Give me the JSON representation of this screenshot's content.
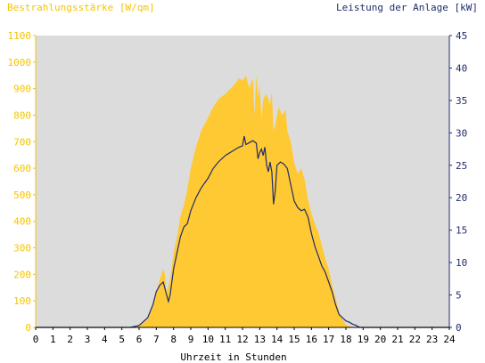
{
  "chart_data": {
    "type": "area",
    "ylabel_left": "Bestrahlungsstärke [W/qm]",
    "ylabel_right": "Leistung der Anlage [kW]",
    "xlabel": "Uhrzeit in Stunden",
    "xlim": [
      0,
      24
    ],
    "ylim_left": [
      0,
      1100
    ],
    "ylim_right": [
      0,
      45
    ],
    "x_ticks": [
      "0",
      "1",
      "2",
      "3",
      "4",
      "5",
      "6",
      "7",
      "8",
      "9",
      "10",
      "11",
      "12",
      "13",
      "14",
      "15",
      "16",
      "17",
      "18",
      "19",
      "20",
      "21",
      "22",
      "23",
      "24"
    ],
    "y_ticks_left": [
      "0",
      "100",
      "200",
      "300",
      "400",
      "500",
      "600",
      "700",
      "800",
      "900",
      "1000",
      "1100"
    ],
    "y_ticks_right": [
      "0",
      "5",
      "10",
      "15",
      "20",
      "25",
      "30",
      "35",
      "40",
      "45"
    ],
    "grid": false,
    "colors": {
      "plot_background": "#dcdcdc",
      "irradiance_fill": "#ffc933",
      "power_line": "#1f2d6b",
      "left_axis": "#f5c400",
      "right_axis": "#1f2d6b"
    },
    "series": [
      {
        "name": "Bestrahlungsstärke",
        "axis": "left",
        "style": "area",
        "x": [
          0,
          5.5,
          6,
          6.5,
          6.8,
          7,
          7.2,
          7.4,
          7.5,
          7.6,
          7.8,
          8,
          8.2,
          8.4,
          8.6,
          8.8,
          9,
          9.3,
          9.6,
          10,
          10.3,
          10.6,
          11,
          11.3,
          11.6,
          11.8,
          12,
          12.2,
          12.4,
          12.6,
          12.7,
          12.8,
          12.9,
          13,
          13.1,
          13.2,
          13.4,
          13.6,
          13.7,
          13.8,
          13.9,
          14,
          14.1,
          14.3,
          14.5,
          14.6,
          14.8,
          15,
          15.2,
          15.4,
          15.6,
          15.8,
          16,
          16.2,
          16.4,
          16.6,
          16.8,
          17,
          17.2,
          17.4,
          17.6,
          17.8,
          18,
          18.2,
          18.4,
          18.6,
          18.8,
          19,
          19.2,
          19.5,
          24
        ],
        "y": [
          0,
          0,
          5,
          30,
          90,
          130,
          180,
          220,
          200,
          130,
          180,
          280,
          340,
          420,
          460,
          520,
          600,
          680,
          740,
          790,
          830,
          860,
          880,
          900,
          920,
          940,
          930,
          950,
          900,
          940,
          800,
          950,
          870,
          910,
          780,
          860,
          880,
          840,
          890,
          740,
          760,
          800,
          830,
          800,
          820,
          740,
          700,
          620,
          580,
          600,
          560,
          480,
          430,
          390,
          360,
          310,
          260,
          220,
          160,
          110,
          60,
          30,
          10,
          5,
          2,
          0,
          0,
          0,
          0,
          0,
          0
        ]
      },
      {
        "name": "Leistung der Anlage",
        "axis": "right",
        "style": "line",
        "x": [
          0,
          5.5,
          6,
          6.5,
          6.8,
          7,
          7.2,
          7.4,
          7.6,
          7.7,
          7.8,
          8,
          8.2,
          8.4,
          8.6,
          8.8,
          9,
          9.3,
          9.6,
          10,
          10.3,
          10.6,
          11,
          11.3,
          11.6,
          11.8,
          12,
          12.1,
          12.2,
          12.4,
          12.6,
          12.8,
          12.9,
          13,
          13.1,
          13.2,
          13.3,
          13.4,
          13.5,
          13.6,
          13.7,
          13.8,
          13.9,
          14,
          14.2,
          14.4,
          14.6,
          14.8,
          15,
          15.2,
          15.4,
          15.6,
          15.8,
          16,
          16.2,
          16.4,
          16.6,
          16.8,
          17,
          17.2,
          17.4,
          17.6,
          17.8,
          18,
          18.2,
          18.4,
          18.6,
          18.8,
          19,
          19.2,
          24
        ],
        "y": [
          0,
          0,
          0.3,
          1.5,
          3.5,
          5.5,
          6.5,
          7,
          5,
          4,
          5,
          9,
          11.5,
          14,
          15.5,
          16,
          18,
          20,
          21.5,
          23,
          24.5,
          25.5,
          26.5,
          27,
          27.5,
          27.8,
          28,
          29.5,
          28.2,
          28.5,
          28.8,
          28.4,
          26,
          27,
          27.5,
          26.5,
          27.8,
          25,
          24,
          25.5,
          24,
          19,
          21,
          25,
          25.5,
          25.2,
          24.5,
          22,
          19.5,
          18.5,
          18,
          18.2,
          17,
          14.5,
          12.5,
          11,
          9.5,
          8.5,
          7,
          5.5,
          3.5,
          2,
          1.5,
          1,
          0.8,
          0.5,
          0.3,
          0,
          0,
          0,
          0
        ]
      }
    ]
  }
}
